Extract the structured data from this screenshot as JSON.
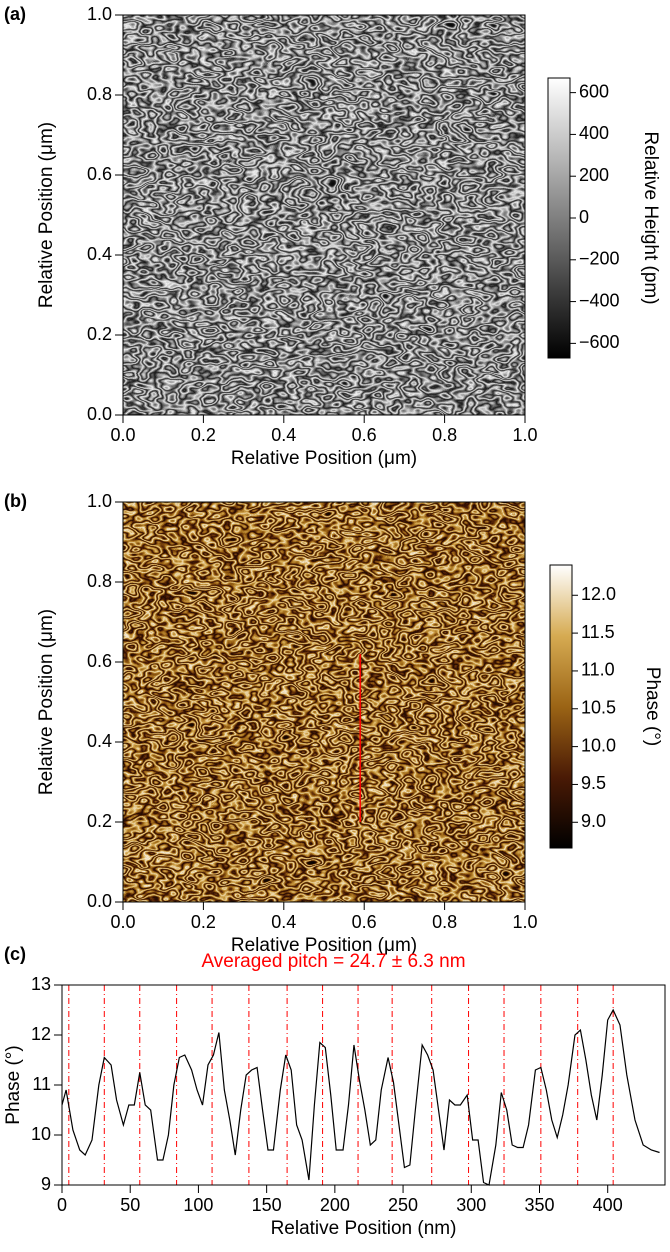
{
  "chart_data": [
    {
      "type": "image",
      "panel_label": "(a)",
      "xlabel": "Relative Position (μm)",
      "ylabel": "Relative Position (μm)",
      "xlim": [
        0,
        1
      ],
      "ylim": [
        0,
        1
      ],
      "xticks": [
        {
          "value": 0,
          "label": "0.0"
        },
        {
          "value": 0.2,
          "label": "0.2"
        },
        {
          "value": 0.4,
          "label": "0.4"
        },
        {
          "value": 0.6,
          "label": "0.6"
        },
        {
          "value": 0.8,
          "label": "0.8"
        },
        {
          "value": 1,
          "label": "1.0"
        }
      ],
      "yticks": [
        {
          "value": 0,
          "label": "0.0"
        },
        {
          "value": 0.2,
          "label": "0.2"
        },
        {
          "value": 0.4,
          "label": "0.4"
        },
        {
          "value": 0.6,
          "label": "0.6"
        },
        {
          "value": 0.8,
          "label": "0.8"
        },
        {
          "value": 1,
          "label": "1.0"
        }
      ],
      "colorbar": {
        "label": "Relative Height (pm)",
        "lim": [
          -670,
          670
        ],
        "ticks": [
          600,
          400,
          200,
          0,
          {
            "value": -200,
            "label": "−200"
          },
          {
            "value": -400,
            "label": "−400"
          },
          {
            "value": -600,
            "label": "−600"
          }
        ],
        "colormap": [
          "#000000",
          "#ffffff"
        ]
      }
    },
    {
      "type": "image",
      "panel_label": "(b)",
      "xlabel": "Relative Position (μm)",
      "ylabel": "Relative Position (μm)",
      "xlim": [
        0,
        1
      ],
      "ylim": [
        0,
        1
      ],
      "xticks": [
        {
          "value": 0,
          "label": "0.0"
        },
        {
          "value": 0.2,
          "label": "0.2"
        },
        {
          "value": 0.4,
          "label": "0.4"
        },
        {
          "value": 0.6,
          "label": "0.6"
        },
        {
          "value": 0.8,
          "label": "0.8"
        },
        {
          "value": 1,
          "label": "1.0"
        }
      ],
      "yticks": [
        {
          "value": 0,
          "label": "0.0"
        },
        {
          "value": 0.2,
          "label": "0.2"
        },
        {
          "value": 0.4,
          "label": "0.4"
        },
        {
          "value": 0.6,
          "label": "0.6"
        },
        {
          "value": 0.8,
          "label": "0.8"
        },
        {
          "value": 1,
          "label": "1.0"
        }
      ],
      "colorbar": {
        "label": "Phase (°)",
        "lim": [
          8.66,
          12.4
        ],
        "ticks": [
          {
            "value": 9,
            "label": "9.0"
          },
          9.5,
          {
            "value": 10,
            "label": "10.0"
          },
          10.5,
          {
            "value": 11,
            "label": "11.0"
          },
          11.5,
          {
            "value": 12,
            "label": "12.0"
          }
        ],
        "colormap": [
          "#000000",
          "#4a1a05",
          "#9b6415",
          "#d6ab52",
          "#ffffff"
        ]
      },
      "profile_line": {
        "x": [
          0.59,
          0.59
        ],
        "y": [
          0.2,
          0.62
        ],
        "color": "#ff0000"
      }
    },
    {
      "type": "line",
      "panel_label": "(c)",
      "title": "Averaged pitch  = 24.7 ± 6.3 nm",
      "title_color": "#ff0000",
      "xlabel": "Relative Position (nm)",
      "ylabel": "Phase (°)",
      "xlim": [
        0,
        442
      ],
      "ylim": [
        9,
        13
      ],
      "xticks": [
        0,
        50,
        100,
        150,
        200,
        250,
        300,
        350,
        400
      ],
      "yticks": [
        9,
        10,
        11,
        12,
        13
      ],
      "x": [
        0,
        3,
        8,
        13,
        17,
        22,
        27,
        31,
        36,
        40,
        45,
        49,
        53,
        57,
        61,
        65,
        70,
        74,
        78,
        82,
        86,
        90,
        95,
        99,
        103,
        107,
        111,
        115,
        119,
        123,
        127,
        131,
        135,
        139,
        143,
        147,
        151,
        155,
        160,
        164,
        168,
        172,
        176,
        181,
        185,
        189,
        193,
        197,
        201,
        206,
        210,
        214,
        218,
        222,
        226,
        230,
        234,
        239,
        243,
        247,
        251,
        255,
        259,
        264,
        268,
        272,
        276,
        280,
        284,
        288,
        292,
        297,
        301,
        305,
        309,
        313,
        318,
        322,
        326,
        330,
        334,
        338,
        342,
        347,
        351,
        355,
        359,
        363,
        367,
        371,
        376,
        380,
        384,
        388,
        392,
        396,
        400,
        404,
        409,
        414,
        420,
        426,
        432,
        438
      ],
      "values": [
        10.6,
        10.9,
        10.1,
        9.7,
        9.6,
        9.9,
        11.0,
        11.55,
        11.4,
        10.7,
        10.2,
        10.6,
        10.6,
        11.25,
        10.6,
        10.5,
        9.5,
        9.5,
        10.0,
        11.0,
        11.55,
        11.6,
        11.3,
        10.9,
        10.6,
        11.4,
        11.6,
        12.05,
        10.9,
        10.3,
        9.6,
        10.5,
        11.2,
        11.3,
        11.35,
        10.5,
        9.7,
        9.7,
        10.9,
        11.6,
        11.3,
        10.2,
        9.9,
        9.1,
        10.6,
        11.85,
        11.75,
        10.8,
        9.7,
        9.7,
        10.6,
        11.8,
        11.1,
        10.5,
        9.8,
        9.9,
        10.9,
        11.55,
        11.05,
        10.2,
        9.35,
        9.4,
        10.5,
        11.8,
        11.6,
        11.3,
        10.5,
        9.7,
        10.7,
        10.6,
        10.6,
        10.8,
        9.9,
        9.9,
        9.05,
        9.0,
        9.8,
        10.85,
        10.5,
        9.8,
        9.75,
        9.75,
        10.2,
        11.3,
        11.35,
        10.9,
        10.3,
        9.95,
        10.4,
        11.0,
        12.0,
        12.1,
        11.5,
        10.8,
        10.3,
        11.2,
        12.3,
        12.5,
        12.2,
        11.2,
        10.3,
        9.8,
        9.7,
        9.65
      ],
      "color": "#000000",
      "vlines": {
        "x": [
          5,
          31,
          57,
          84,
          110,
          137,
          165,
          191,
          217,
          242,
          271,
          298,
          324,
          351,
          378,
          404
        ],
        "color": "#ff0000"
      }
    }
  ]
}
